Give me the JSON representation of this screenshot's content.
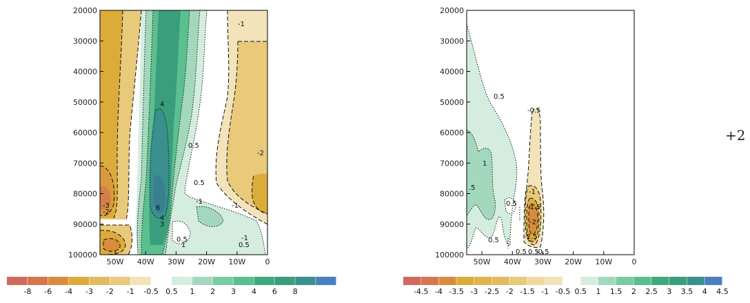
{
  "side_note": "+2",
  "colors": {
    "orange_dark": "#cf6a5e",
    "orange_mid": "#dcac3b",
    "orange_light": "#e9c97a",
    "orange_pale": "#f2e3bb",
    "green_pale": "#d4eddf",
    "green_light": "#a3d8bc",
    "green_mid": "#5bbf8f",
    "green_dark": "#3a9e7c",
    "teal": "#3a8f8f",
    "blue": "#4a80c0"
  },
  "chart_data": [
    {
      "type": "heatmap",
      "x_ticks": [
        "50W",
        "40W",
        "30W",
        "20W",
        "10W",
        "0"
      ],
      "x_values": [
        -50,
        -40,
        -30,
        -20,
        -10,
        0
      ],
      "xlim": [
        -55,
        0
      ],
      "y_ticks": [
        "20000",
        "30000",
        "40000",
        "50000",
        "60000",
        "70000",
        "80000",
        "90000",
        "100000"
      ],
      "y_values": [
        20000,
        30000,
        40000,
        50000,
        60000,
        70000,
        80000,
        90000,
        100000
      ],
      "ylim": [
        20000,
        100000
      ],
      "contour_labels": [
        "-1",
        "4",
        "0.5",
        "-2",
        "0.5",
        "-1",
        "-1",
        "6",
        "4",
        "3",
        "-3",
        "-2",
        "0.5",
        "-1",
        "0.5",
        "1"
      ],
      "colorbar": {
        "colors": [
          "#cf6a5e",
          "#d4774e",
          "#d98c3d",
          "#dcac3b",
          "#e3bb5e",
          "#e9c97a",
          "#f2e3bb",
          "#ffffff",
          "#d4eddf",
          "#a3d8bc",
          "#7acca4",
          "#5bbf8f",
          "#3ea97f",
          "#3a9e7c",
          "#3a8f8f",
          "#4a80c0"
        ],
        "labels": [
          "-8",
          "-6",
          "-4",
          "-3",
          "-2",
          "-1",
          "-0.5",
          "0.5",
          "1",
          "2",
          "3",
          "4",
          "6",
          "8"
        ]
      }
    },
    {
      "type": "heatmap",
      "x_ticks": [
        "50W",
        "40W",
        "30W",
        "20W",
        "10W",
        "0"
      ],
      "x_values": [
        -50,
        -40,
        -30,
        -20,
        -10,
        0
      ],
      "xlim": [
        -55,
        0
      ],
      "y_ticks": [
        "20000",
        "30000",
        "40000",
        "50000",
        "60000",
        "70000",
        "80000",
        "90000",
        "100000"
      ],
      "y_values": [
        20000,
        30000,
        40000,
        50000,
        60000,
        70000,
        80000,
        90000,
        100000
      ],
      "ylim": [
        20000,
        100000
      ],
      "contour_labels": [
        "0.5",
        "-0.5",
        "1",
        ".5",
        "-1",
        "-1.5",
        "0.5",
        "-2",
        "0.5",
        "-2.5",
        "0.5",
        "0.5",
        "-0.5"
      ],
      "colorbar": {
        "colors": [
          "#cf6a5e",
          "#d4774e",
          "#d98c3d",
          "#dcac3b",
          "#e0b44c",
          "#e3bb5e",
          "#e9c97a",
          "#efd9a0",
          "#f2e3bb",
          "#ffffff",
          "#d4eddf",
          "#a3d8bc",
          "#7acca4",
          "#5bbf8f",
          "#3ea97f",
          "#3a9e7c",
          "#3a8f8f",
          "#4a80c0"
        ],
        "labels": [
          "-4.5",
          "-4",
          "-3.5",
          "-3",
          "-2.5",
          "-2",
          "-1.5",
          "-1",
          "-0.5",
          "0.5",
          "1",
          "1.5",
          "2",
          "2.5",
          "3",
          "3.5",
          "4",
          "4.5"
        ]
      }
    }
  ]
}
